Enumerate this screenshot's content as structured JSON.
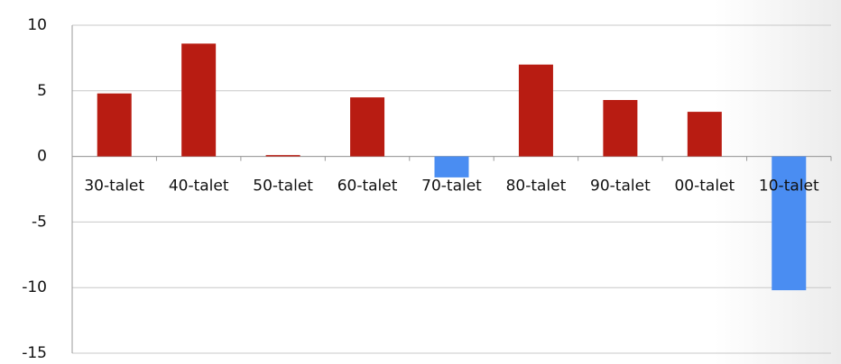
{
  "chart_data": {
    "type": "bar",
    "categories": [
      "30-talet",
      "40-talet",
      "50-talet",
      "60-talet",
      "70-talet",
      "80-talet",
      "90-talet",
      "00-talet",
      "10-talet"
    ],
    "values": [
      4.8,
      8.6,
      0.1,
      4.5,
      -1.6,
      7.0,
      4.3,
      3.4,
      -10.2
    ],
    "color": "#b81c12",
    "negative_color": "#4a8df2",
    "ylim": [
      -15,
      10
    ],
    "yticks": [
      -15,
      -10,
      -5,
      0,
      5,
      10
    ],
    "grid": true
  }
}
